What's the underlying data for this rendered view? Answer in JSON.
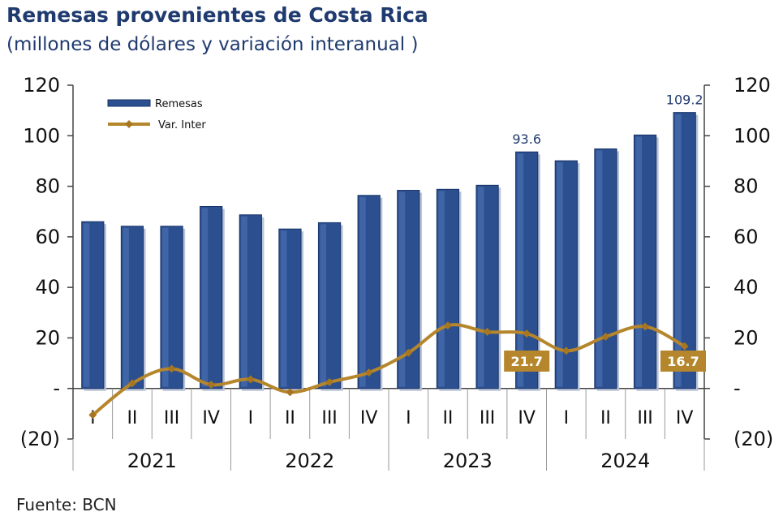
{
  "title": "Remesas provenientes de Costa Rica",
  "subtitle": "(millones de dólares y variación interanual )",
  "source": "Fuente: BCN",
  "colors": {
    "bar": "#2b4f8f",
    "bar_dark": "#18336a",
    "line": "#b5862b",
    "marker": "#a87620",
    "callout": "#b5862b",
    "title": "#1f3a6e"
  },
  "chart_data": {
    "type": "bar",
    "categories": [
      "I",
      "II",
      "III",
      "IV",
      "I",
      "II",
      "III",
      "IV",
      "I",
      "II",
      "III",
      "IV",
      "I",
      "II",
      "III",
      "IV"
    ],
    "years": [
      "2021",
      "2022",
      "2023",
      "2024"
    ],
    "ylim": [
      -20,
      120
    ],
    "y_ticks": [
      "(20)",
      "-",
      "20",
      "40",
      "60",
      "80",
      "100",
      "120"
    ],
    "grid": false,
    "legend_position": "top-left",
    "series": [
      {
        "name": "Remesas",
        "type": "bar",
        "axis": "left",
        "values": [
          66.0,
          64.2,
          64.2,
          72.0,
          68.7,
          63.1,
          65.6,
          76.4,
          78.4,
          78.8,
          80.4,
          93.6,
          90.1,
          94.8,
          100.3,
          109.2
        ]
      },
      {
        "name": "Var. Inter",
        "type": "line",
        "axis": "right",
        "values": [
          -10.5,
          2.0,
          7.8,
          1.5,
          3.6,
          -1.5,
          2.5,
          6.3,
          14.1,
          24.9,
          22.4,
          21.7,
          14.9,
          20.5,
          24.5,
          16.7
        ]
      }
    ],
    "bar_labels": [
      {
        "index": 11,
        "text": "93.6"
      },
      {
        "index": 15,
        "text": "109.2"
      }
    ],
    "line_labels": [
      {
        "index": 11,
        "text": "21.7"
      },
      {
        "index": 15,
        "text": "16.7"
      }
    ]
  }
}
